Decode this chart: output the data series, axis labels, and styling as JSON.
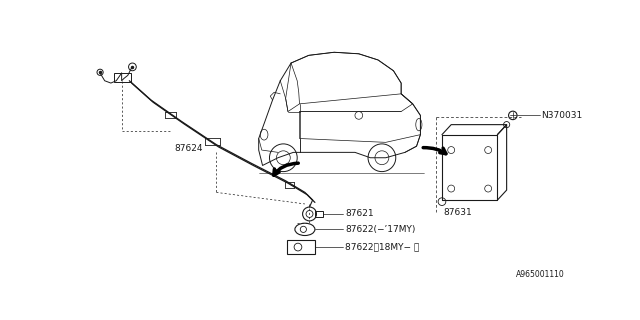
{
  "bg_color": "#ffffff",
  "line_color": "#1a1a1a",
  "label_texts": {
    "87624": "87624",
    "87621": "87621",
    "87622_17": "87622(−’17MY)",
    "87622_18": "87622（18MY− ）",
    "87631": "87631",
    "N370031": "N370031"
  },
  "watermark": "A965001110",
  "label_fontsize": 6.5
}
